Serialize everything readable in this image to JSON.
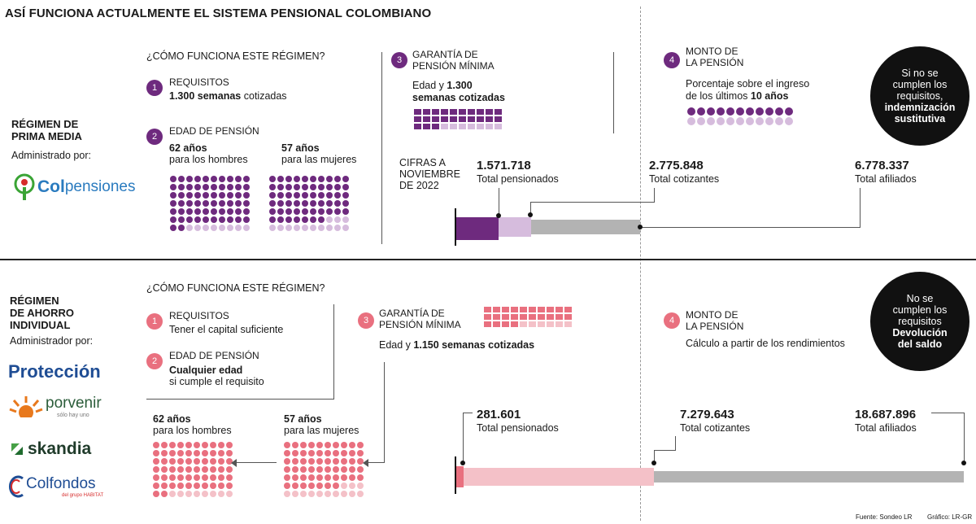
{
  "title": "ASÍ FUNCIONA ACTUALMENTE EL  SISTEMA PENSIONAL COLOMBIANO",
  "prima": {
    "regime_title_1": "RÉGIMEN DE",
    "regime_title_2": "PRIMA MEDIA",
    "admin_label": "Administrado por:",
    "logo_prefix": "Col",
    "logo_suffix": "pensiones",
    "how_header": "¿CÓMO FUNCIONA ESTE RÉGIMEN?",
    "step1_num": "1",
    "step1_label": "REQUISITOS",
    "step1_bold": "1.300 semanas",
    "step1_text": " cotizadas",
    "step2_num": "2",
    "step2_label": "EDAD DE PENSIÓN",
    "men_age": "62 años",
    "men_text": "para los hombres",
    "women_age": "57 años",
    "women_text": "para las mujeres",
    "step3_num": "3",
    "step3_label_1": "GARANTÍA DE",
    "step3_label_2": "PENSIÓN MÍNIMA",
    "step3_text_1": "Edad y ",
    "step3_bold_1": "1.300",
    "step3_bold_2": "semanas cotizadas",
    "step4_num": "4",
    "step4_label_1": "MONTO DE",
    "step4_label_2": "LA PENSIÓN",
    "step4_text_1": "Porcentaje sobre el ingreso",
    "step4_text_2": "de los últimos ",
    "step4_bold": "10 años",
    "circle_1": "Si no se",
    "circle_2": "cumplen los",
    "circle_3": "requisitos,",
    "circle_4": "indemnización",
    "circle_5": "sustitutiva",
    "cifras_1": "CIFRAS A",
    "cifras_2": "NOVIEMBRE",
    "cifras_3": "DE 2022",
    "pensionados_value": "1.571.718",
    "pensionados_label": "Total pensionados",
    "cotizantes_value": "2.775.848",
    "cotizantes_label": "Total cotizantes",
    "afiliados_value": "6.778.337",
    "afiliados_label": "Total afiliados"
  },
  "ahorro": {
    "regime_title_1": "RÉGIMEN",
    "regime_title_2": "DE AHORRO",
    "regime_title_3": "INDIVIDUAL",
    "admin_label": "Administrador por:",
    "logo_1": "Protección",
    "logo_2": "porvenir",
    "logo_2_sub": "sólo hay uno",
    "logo_3": "skandia",
    "logo_4": "Colfondos",
    "logo_4_sub": "del grupo HABITAT",
    "how_header": "¿CÓMO FUNCIONA ESTE RÉGIMEN?",
    "step1_num": "1",
    "step1_label": "REQUISITOS",
    "step1_text": "Tener el capital suficiente",
    "step2_num": "2",
    "step2_label": "EDAD DE PENSIÓN",
    "step2_bold": "Cualquier edad",
    "step2_text": "si cumple el requisito",
    "men_age": "62 años",
    "men_text": "para los hombres",
    "women_age": "57 años",
    "women_text": "para las mujeres",
    "step3_num": "3",
    "step3_label_1": "GARANTÍA DE",
    "step3_label_2": "PENSIÓN MÍNIMA",
    "step3_text": "Edad y ",
    "step3_bold": "1.150 semanas cotizadas",
    "step4_num": "4",
    "step4_label_1": "MONTO DE",
    "step4_label_2": "LA PENSIÓN",
    "step4_text": "Cálculo a partir de los rendimientos",
    "circle_1": "No se",
    "circle_2": "cumplen los",
    "circle_3": "requisitos",
    "circle_4": "Devolución",
    "circle_5": "del saldo",
    "pensionados_value": "281.601",
    "pensionados_label": "Total pensionados",
    "cotizantes_value": "7.279.643",
    "cotizantes_label": "Total cotizantes",
    "afiliados_value": "18.687.896",
    "afiliados_label": "Total afiliados"
  },
  "footer": {
    "source": "Fuente: Sondeo LR",
    "graphic": "Gráfico: LR-GR"
  },
  "colors": {
    "purple": "#6e2a7e",
    "light_purple": "#d6bcdd",
    "pink": "#e9707f",
    "light_pink": "#f4c1c8",
    "gray": "#b3b3b3"
  }
}
